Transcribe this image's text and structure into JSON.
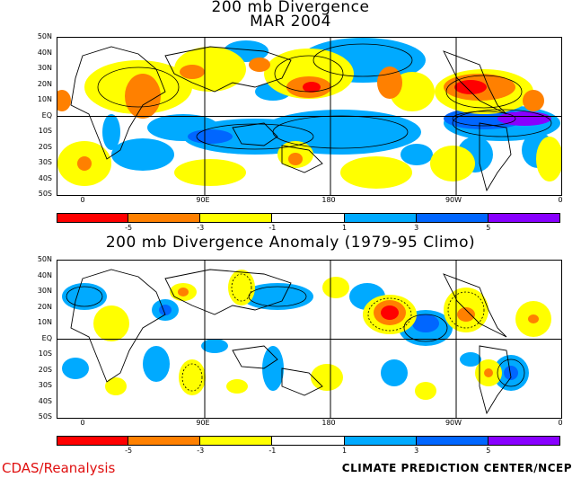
{
  "titles": {
    "top_line1": "200 mb Divergence",
    "top_line2": "MAR 2004",
    "bottom": "200 mb Divergence Anomaly (1979-95 Climo)"
  },
  "lat_labels": [
    "50N",
    "40N",
    "30N",
    "20N",
    "10N",
    "EQ",
    "10S",
    "20S",
    "30S",
    "40S",
    "50S"
  ],
  "lon_labels": [
    "0",
    "90E",
    "180",
    "90W",
    "0"
  ],
  "colorbar": {
    "colors": [
      "#ff0000",
      "#ff8000",
      "#ffff00",
      "#ffffff",
      "#00aaff",
      "#0066ff",
      "#8800ff"
    ],
    "labels": [
      "-5",
      "-3",
      "-1",
      "1",
      "3",
      "5"
    ]
  },
  "footer": {
    "left": "CDAS/Reanalysis",
    "right": "CLIMATE PREDICTION CENTER/NCEP"
  }
}
